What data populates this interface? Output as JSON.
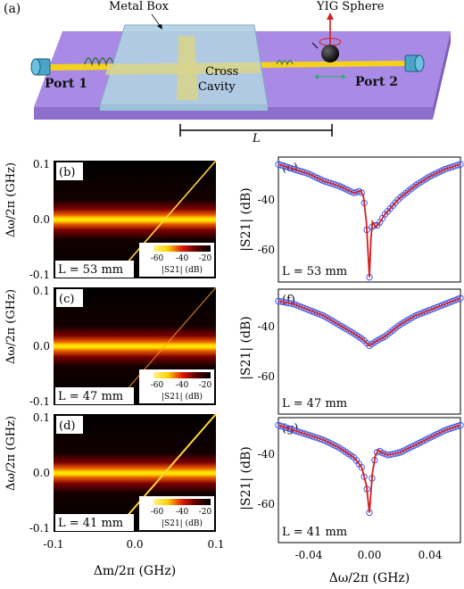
{
  "schematic": {
    "panel_label": "(a)",
    "metal_box_label": "Metal Box",
    "yig_label": "YIG Sphere",
    "port1_label": "Port 1",
    "port2_label": "Port 2",
    "cavity_label_line1": "Cross",
    "cavity_label_line2": "Cavity",
    "length_label": "L",
    "colors": {
      "board": "#a98be6",
      "strip": "#f5d21a",
      "box": "#b9d8ea",
      "sphere": "#111111"
    }
  },
  "heatmaps": {
    "ylabel": "Δω/2π (GHz)",
    "xlabel": "Δm/2π (GHz)",
    "y_ticks": [
      "0.1",
      "0.0",
      "-0.1"
    ],
    "x_ticks": [
      "-0.1",
      "0.0",
      "0.1"
    ],
    "colorbar_ticks": [
      "-60",
      "-40",
      "-20"
    ],
    "colorbar_label": "|S21| (dB)",
    "panels": [
      {
        "label": "(b)",
        "length": "L = 53 mm"
      },
      {
        "label": "(c)",
        "length": "L = 47 mm"
      },
      {
        "label": "(d)",
        "length": "L = 41 mm"
      }
    ]
  },
  "chart_data": [
    {
      "type": "heatmap",
      "panel": "(b)",
      "xlabel": "Δm/2π (GHz)",
      "ylabel": "Δω/2π (GHz)",
      "xlim": [
        -0.1,
        0.1
      ],
      "ylim": [
        -0.1,
        0.1
      ],
      "colorbar": {
        "label": "|S21| (dB)",
        "range": [
          -70,
          -15
        ]
      },
      "horizontal_band_center": 0.0,
      "diagonal_line": {
        "from": [
          -0.02,
          -0.09
        ],
        "to": [
          0.1,
          0.1
        ]
      },
      "annotation": "L = 53 mm"
    },
    {
      "type": "heatmap",
      "panel": "(c)",
      "xlabel": "Δm/2π (GHz)",
      "ylabel": "Δω/2π (GHz)",
      "xlim": [
        -0.1,
        0.1
      ],
      "ylim": [
        -0.1,
        0.1
      ],
      "colorbar": {
        "label": "|S21| (dB)",
        "range": [
          -70,
          -15
        ]
      },
      "horizontal_band_center": 0.0,
      "diagonal_line": {
        "from": [
          -0.02,
          -0.09
        ],
        "to": [
          0.1,
          0.1
        ]
      },
      "annotation": "L = 47 mm"
    },
    {
      "type": "heatmap",
      "panel": "(d)",
      "xlabel": "Δm/2π (GHz)",
      "ylabel": "Δω/2π (GHz)",
      "xlim": [
        -0.1,
        0.1
      ],
      "ylim": [
        -0.1,
        0.1
      ],
      "colorbar": {
        "label": "|S21| (dB)",
        "range": [
          -70,
          -15
        ]
      },
      "horizontal_band_center": 0.0,
      "diagonal_line": {
        "from": [
          -0.02,
          -0.09
        ],
        "to": [
          0.1,
          0.1
        ]
      },
      "annotation": "L = 41 mm"
    },
    {
      "type": "line",
      "panel": "(e)",
      "xlabel": "Δω/2π (GHz)",
      "ylabel": "|S21| (dB)",
      "xlim": [
        -0.06,
        0.06
      ],
      "ylim": [
        -80,
        -28
      ],
      "annotation": "L = 53 mm",
      "x": [
        -0.06,
        -0.05,
        -0.04,
        -0.03,
        -0.02,
        -0.01,
        -0.006,
        -0.004,
        -0.002,
        0.0,
        0.001,
        0.002,
        0.004,
        0.006,
        0.01,
        0.02,
        0.03,
        0.04,
        0.05,
        0.06
      ],
      "y": [
        -31,
        -33,
        -35,
        -38,
        -40,
        -43,
        -42,
        -44,
        -55,
        -78,
        -62,
        -55,
        -57,
        -56,
        -52,
        -45,
        -40,
        -36,
        -33,
        -31
      ]
    },
    {
      "type": "line",
      "panel": "(f)",
      "xlabel": "Δω/2π (GHz)",
      "ylabel": "|S21| (dB)",
      "xlim": [
        -0.06,
        0.06
      ],
      "ylim": [
        -72,
        -30
      ],
      "annotation": "L = 47 mm",
      "x": [
        -0.06,
        -0.05,
        -0.04,
        -0.03,
        -0.02,
        -0.01,
        -0.004,
        0.0,
        0.003,
        0.006,
        0.01,
        0.02,
        0.03,
        0.04,
        0.05,
        0.06
      ],
      "y": [
        -34,
        -35,
        -37,
        -39,
        -42,
        -45,
        -47,
        -49,
        -48,
        -47,
        -46,
        -42,
        -39,
        -37,
        -35,
        -33
      ]
    },
    {
      "type": "line",
      "panel": "(g)",
      "xlabel": "Δω/2π (GHz)",
      "ylabel": "|S21| (dB)",
      "xlim": [
        -0.06,
        0.06
      ],
      "ylim": [
        -78,
        -28
      ],
      "annotation": "L = 41 mm",
      "x": [
        -0.06,
        -0.05,
        -0.04,
        -0.03,
        -0.02,
        -0.01,
        -0.005,
        -0.002,
        0.0,
        0.002,
        0.004,
        0.006,
        0.008,
        0.012,
        0.02,
        0.03,
        0.04,
        0.05,
        0.06
      ],
      "y": [
        -31,
        -33,
        -35,
        -37,
        -40,
        -44,
        -48,
        -55,
        -66,
        -50,
        -43,
        -41,
        -42,
        -43,
        -42,
        -39,
        -36,
        -33,
        -31
      ]
    }
  ],
  "linecharts": {
    "ylabel": "|S21| (dB)",
    "xlabel": "Δω/2π (GHz)",
    "y_ticks": [
      "-40",
      "-60"
    ],
    "x_ticks": [
      "-0.04",
      "0.00",
      "0.04"
    ],
    "panels": [
      {
        "label": "(e)",
        "length": "L = 53 mm"
      },
      {
        "label": "(f)",
        "length": "L = 47 mm"
      },
      {
        "label": "(g)",
        "length": "L = 41 mm"
      }
    ],
    "colors": {
      "data": "#4b5ae0",
      "fit": "#d21f1f"
    }
  }
}
